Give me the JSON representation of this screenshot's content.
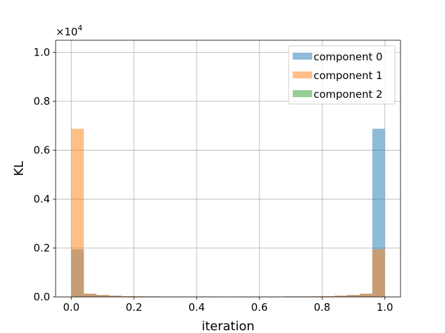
{
  "chart_data": {
    "type": "bar",
    "title": "",
    "xlabel": "iteration",
    "ylabel": "KL",
    "y_offset_text": "×10",
    "y_offset_exponent": "4",
    "xlim": [
      -0.05,
      1.05
    ],
    "ylim": [
      0,
      10500
    ],
    "grid": true,
    "legend_position": "top-right",
    "bin_width": 0.04,
    "x_ticks": [
      0.0,
      0.2,
      0.4,
      0.6,
      0.8,
      1.0
    ],
    "x_tick_labels": [
      "0.0",
      "0.2",
      "0.4",
      "0.6",
      "0.8",
      "1.0"
    ],
    "y_ticks": [
      0,
      2000,
      4000,
      6000,
      8000,
      10000
    ],
    "y_tick_labels": [
      "0.0",
      "0.2",
      "0.4",
      "0.6",
      "0.8",
      "1.0"
    ],
    "x": [
      0.02,
      0.06,
      0.1,
      0.14,
      0.18,
      0.22,
      0.26,
      0.3,
      0.34,
      0.38,
      0.42,
      0.46,
      0.5,
      0.54,
      0.58,
      0.62,
      0.66,
      0.7,
      0.74,
      0.78,
      0.82,
      0.86,
      0.9,
      0.94,
      0.98
    ],
    "series": [
      {
        "name": "component 0",
        "color": "#1f77b4",
        "values": [
          1950,
          130,
          80,
          50,
          30,
          25,
          20,
          15,
          15,
          15,
          15,
          15,
          0,
          15,
          15,
          15,
          15,
          20,
          20,
          25,
          30,
          50,
          80,
          130,
          6880
        ]
      },
      {
        "name": "component 1",
        "color": "#ff7f0e",
        "values": [
          6880,
          130,
          80,
          50,
          30,
          25,
          20,
          15,
          15,
          15,
          15,
          15,
          0,
          15,
          15,
          15,
          15,
          20,
          20,
          25,
          30,
          50,
          80,
          130,
          1950
        ]
      },
      {
        "name": "component 2",
        "color": "#2ca02c",
        "values": [
          0,
          0,
          0,
          0,
          0,
          0,
          0,
          0,
          0,
          0,
          0,
          0,
          0,
          0,
          0,
          0,
          0,
          0,
          0,
          0,
          0,
          0,
          0,
          0,
          0
        ]
      }
    ]
  }
}
